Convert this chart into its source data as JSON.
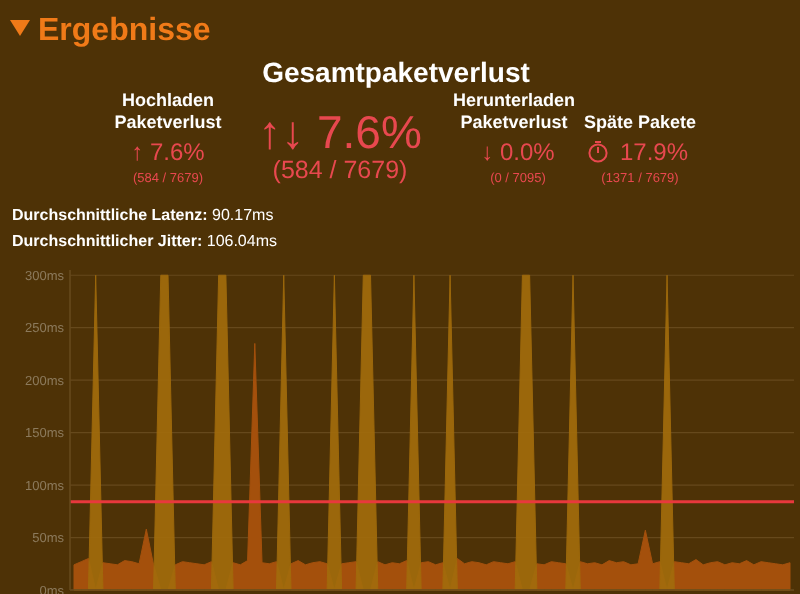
{
  "chart_data": {
    "type": "area",
    "title": "Ergebnisse",
    "annotations": [
      "Gesamtpaketverlust",
      "Hochladen Paketverlust",
      "↑ 7.6%",
      "(584 / 7679)",
      "↑↓ 7.6%",
      "(584 / 7679)",
      "Herunterladen Paketverlust",
      "↓ 0.0%",
      "(0 / 7095)",
      "Späte Pakete",
      "17.9%",
      "(1371 / 7679)",
      "Durchschnittliche Latenz: 90.17ms",
      "Durchschnittlicher Jitter: 106.04ms"
    ],
    "categories": [
      null,
      null,
      null,
      null,
      null,
      null,
      null,
      null,
      null,
      null,
      null,
      null,
      null,
      null,
      null,
      null,
      null,
      null,
      null,
      null,
      null,
      null,
      null,
      null,
      null,
      null,
      null,
      null,
      null,
      null,
      null,
      null,
      null,
      null,
      null,
      null,
      null,
      null,
      null,
      null,
      null,
      null,
      null,
      null,
      null,
      null,
      null,
      null,
      null,
      null,
      null,
      null,
      null,
      null,
      null,
      null,
      null,
      null,
      null,
      null,
      null,
      null,
      null,
      null,
      null,
      null,
      null,
      null,
      null,
      null,
      null,
      null,
      null,
      null,
      null,
      null,
      null,
      null,
      null,
      null,
      null,
      null,
      null,
      null,
      null,
      null,
      null,
      null,
      null,
      null,
      null,
      null,
      null,
      null,
      null,
      null,
      null,
      null,
      null,
      null
    ],
    "ylim": [
      0,
      305
    ],
    "yticks": [
      {
        "value": 0,
        "label": "0ms"
      },
      {
        "value": 50,
        "label": "50ms"
      },
      {
        "value": 100,
        "label": "100ms"
      },
      {
        "value": 150,
        "label": "150ms"
      },
      {
        "value": 200,
        "label": "200ms"
      },
      {
        "value": 250,
        "label": "250ms"
      },
      {
        "value": 300,
        "label": "300ms"
      }
    ],
    "tick_labels": "y",
    "grid": "y",
    "series": [
      {
        "color": "#a4500c",
        "values": [
          24,
          27,
          30,
          0,
          26,
          25,
          24,
          28,
          27,
          25,
          58,
          24,
          0,
          0,
          24,
          27,
          26,
          25,
          24,
          27,
          0,
          0,
          26,
          24,
          28,
          235,
          26,
          25,
          27,
          0,
          25,
          28,
          24,
          26,
          27,
          25,
          0,
          25,
          26,
          27,
          0,
          0,
          27,
          24,
          26,
          25,
          28,
          0,
          26,
          27,
          24,
          26,
          0,
          30,
          25,
          27,
          26,
          24,
          27,
          26,
          25,
          27,
          0,
          0,
          25,
          24,
          27,
          26,
          25,
          0,
          27,
          25,
          26,
          24,
          28,
          26,
          27,
          24,
          25,
          57,
          25,
          27,
          0,
          27,
          26,
          25,
          29,
          24,
          26,
          27,
          24,
          26,
          25,
          28,
          24,
          27,
          26,
          25,
          24,
          26
        ]
      },
      {
        "color": "#a26c0c",
        "values": [
          0,
          0,
          0,
          300,
          0,
          0,
          0,
          0,
          0,
          0,
          0,
          0,
          300,
          300,
          0,
          0,
          0,
          0,
          0,
          0,
          300,
          300,
          0,
          0,
          0,
          0,
          0,
          0,
          0,
          300,
          0,
          0,
          0,
          0,
          0,
          0,
          300,
          0,
          0,
          0,
          300,
          300,
          0,
          0,
          0,
          0,
          0,
          300,
          0,
          0,
          0,
          0,
          300,
          0,
          0,
          0,
          0,
          0,
          0,
          0,
          0,
          0,
          300,
          300,
          0,
          0,
          0,
          0,
          0,
          300,
          0,
          0,
          0,
          0,
          0,
          0,
          0,
          0,
          0,
          0,
          0,
          0,
          300,
          0,
          0,
          0,
          0,
          0,
          0,
          0,
          0,
          0,
          0,
          0,
          0,
          0,
          0,
          0,
          0,
          0
        ]
      }
    ],
    "ref_lines": [
      {
        "axis": "y",
        "value": 84,
        "color": "#e8383d"
      }
    ]
  }
}
